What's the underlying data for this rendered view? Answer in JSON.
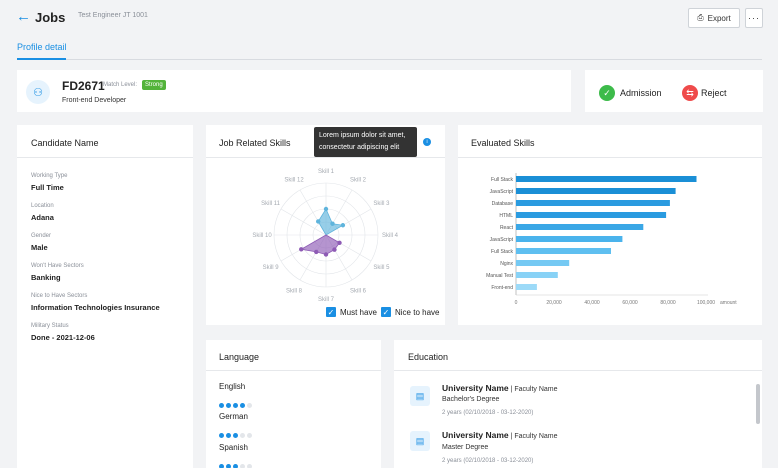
{
  "header": {
    "back_icon": "arrow-left-icon",
    "title": "Jobs",
    "subtitle": "Test Engineer JT 1001",
    "export_label": "Export",
    "more_label": "···"
  },
  "tabs": [
    {
      "label": "Profile detail",
      "active": true
    }
  ],
  "profile": {
    "code": "FD2671",
    "match_label": "Match Level:",
    "match_value": "Strong",
    "role": "Front-end Developer"
  },
  "actions": {
    "admission_label": "Admission",
    "reject_label": "Reject"
  },
  "candidate": {
    "title": "Candidate Name",
    "fields": [
      {
        "label": "Working Type",
        "value": "Full Time"
      },
      {
        "label": "Location",
        "value": "Adana"
      },
      {
        "label": "Gender",
        "value": "Male"
      },
      {
        "label": "Won't Have Sectors",
        "value": "Banking"
      },
      {
        "label": "Nice to Have Sectors",
        "value": "Information Technologies Insurance"
      },
      {
        "label": "Military Status",
        "value": "Done - 2021-12-06"
      }
    ]
  },
  "job_skills": {
    "title": "Job Related Skills",
    "tooltip": "Lorem ipsum dolor sit amet, consectetur adipiscing elit",
    "must_have_label": "Must have",
    "nice_to_have_label": "Nice to have",
    "axes": [
      "Skill 1",
      "Skill 2",
      "Skill 3",
      "Skill 4",
      "Skill 5",
      "Skill 6",
      "Skill 7",
      "Skill 8",
      "Skill 9",
      "Skill 10",
      "Skill 11",
      "Skill 12"
    ]
  },
  "evaluated": {
    "title": "Evaluated Skills"
  },
  "chart_data": [
    {
      "type": "radar",
      "title": "Job Related Skills",
      "categories": [
        "Skill 1",
        "Skill 2",
        "Skill 3",
        "Skill 4",
        "Skill 5",
        "Skill 6",
        "Skill 7",
        "Skill 8",
        "Skill 9",
        "Skill 10",
        "Skill 11",
        "Skill 12"
      ],
      "rmax": 4,
      "series": [
        {
          "name": "Must have",
          "color": "#5fb4dc",
          "values": [
            2,
            1,
            1.5,
            0,
            0,
            0,
            0,
            0,
            0,
            0,
            0,
            1.2
          ]
        },
        {
          "name": "Nice to have",
          "color": "#8e5bb5",
          "values": [
            0,
            0,
            0,
            0,
            1.2,
            1.3,
            1.5,
            1.5,
            2.2,
            0,
            0,
            0
          ]
        }
      ]
    },
    {
      "type": "bar",
      "orientation": "horizontal",
      "title": "Evaluated Skills",
      "categories": [
        "Full Stack",
        "JavaScript",
        "Database",
        "HTML",
        "React",
        "JavaScript",
        "Full Stack",
        "Nginx",
        "Manual Test",
        "Front-end"
      ],
      "values": [
        95000,
        84000,
        81000,
        79000,
        67000,
        56000,
        50000,
        28000,
        22000,
        11000
      ],
      "colors": [
        "#1a8fd6",
        "#1a8fd6",
        "#2a9be0",
        "#2a9be0",
        "#3aa7e6",
        "#4ab3ec",
        "#5fbff0",
        "#75c9f3",
        "#88d2f6",
        "#9cdaf8"
      ],
      "xticks": [
        "0",
        "20,000",
        "40,000",
        "60,000",
        "80,000",
        "100,000"
      ],
      "xlim": [
        0,
        100000
      ],
      "xlabel": "amount"
    }
  ],
  "language": {
    "title": "Language",
    "items": [
      {
        "name": "English",
        "level": 4,
        "max": 5
      },
      {
        "name": "German",
        "level": 3,
        "max": 5
      },
      {
        "name": "Spanish",
        "level": 3,
        "max": 5
      }
    ]
  },
  "education": {
    "title": "Education",
    "items": [
      {
        "university": "University Name",
        "faculty": " | Faculty Name",
        "degree": "Bachelor's Degree",
        "period": "2 years (02/10/2018 - 03-12-2020)"
      },
      {
        "university": "University Name",
        "faculty": " | Faculty Name",
        "degree": "Master Degree",
        "period": "2 years (02/10/2018 - 03-12-2020)"
      }
    ]
  },
  "colors": {
    "accent": "#1a8fe3",
    "success": "#3dbb4a",
    "danger": "#ef4b4b"
  }
}
